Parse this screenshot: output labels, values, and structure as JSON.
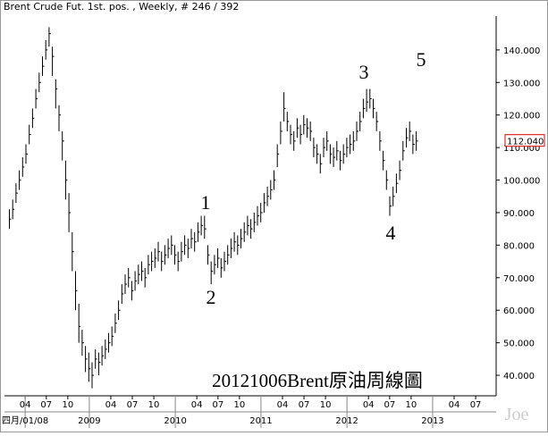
{
  "chart_data": {
    "type": "ohlc",
    "title": "Brent Crude Fut. 1st. pos. , Weekly, # 246 / 392",
    "caption": "20121006Brent原油周線圖",
    "watermark": "Joe",
    "color": "#000000",
    "ylim": [
      33.7,
      150.4
    ],
    "yticks": [
      {
        "value": 40,
        "label": "40.000"
      },
      {
        "value": 50,
        "label": "50.000"
      },
      {
        "value": 60,
        "label": "60.000"
      },
      {
        "value": 70,
        "label": "70.000"
      },
      {
        "value": 80,
        "label": "80.000"
      },
      {
        "value": 90,
        "label": "90.000"
      },
      {
        "value": 100,
        "label": "100.000"
      },
      {
        "value": 110,
        "label": "110.000"
      },
      {
        "value": 120,
        "label": "120.000"
      },
      {
        "value": 130,
        "label": "130.000"
      },
      {
        "value": 140,
        "label": "140.000"
      }
    ],
    "xlim": [
      -1.35,
      147.3
    ],
    "xticks": [
      {
        "value": 4.9,
        "label": "04"
      },
      {
        "value": 11.3,
        "label": "07"
      },
      {
        "value": 17.8,
        "label": "10"
      },
      {
        "value": 30.8,
        "label": "04"
      },
      {
        "value": 37.3,
        "label": "07"
      },
      {
        "value": 43.8,
        "label": "10"
      },
      {
        "value": 56.8,
        "label": "04"
      },
      {
        "value": 63.2,
        "label": "07"
      },
      {
        "value": 69.7,
        "label": "10"
      },
      {
        "value": 82.7,
        "label": "04"
      },
      {
        "value": 89.2,
        "label": "07"
      },
      {
        "value": 95.7,
        "label": "10"
      },
      {
        "value": 108.7,
        "label": "04"
      },
      {
        "value": 115.1,
        "label": "07"
      },
      {
        "value": 121.6,
        "label": "10"
      },
      {
        "value": 134.6,
        "label": "04"
      },
      {
        "value": 141.1,
        "label": "07"
      }
    ],
    "year_ticks": [
      {
        "value": 4.9,
        "label": "四月/01/08"
      },
      {
        "value": 24.3,
        "label": "2009"
      },
      {
        "value": 50.3,
        "label": "2010"
      },
      {
        "value": 76.2,
        "label": "2011"
      },
      {
        "value": 102.2,
        "label": "2012"
      },
      {
        "value": 128.1,
        "label": "2013"
      }
    ],
    "last_price": {
      "value": 112.04,
      "label": "112.040",
      "color": "#e00000"
    },
    "wave_labels": [
      "1",
      "2",
      "3",
      "4",
      "5"
    ],
    "wave_color": "#3a4fc0",
    "high": [
      91,
      94,
      99,
      103,
      107,
      111,
      117,
      122,
      128,
      133,
      138,
      143,
      147,
      141,
      131,
      123,
      115,
      106,
      96,
      84,
      72,
      62,
      54,
      49,
      47,
      44,
      48,
      47,
      49,
      51,
      53,
      55,
      59,
      63,
      68,
      71,
      73,
      69,
      72,
      74,
      75,
      73,
      77,
      78,
      79,
      81,
      78,
      80,
      82,
      83,
      80,
      78,
      81,
      83,
      82,
      85,
      84,
      87,
      89,
      89,
      80,
      75,
      77,
      79,
      76,
      78,
      80,
      82,
      84,
      83,
      85,
      87,
      89,
      88,
      90,
      92,
      93,
      96,
      98,
      100,
      103,
      111,
      118,
      127,
      121,
      117,
      115,
      119,
      117,
      120,
      119,
      118,
      113,
      111,
      108,
      113,
      115,
      111,
      110,
      112,
      109,
      111,
      113,
      114,
      115,
      118,
      121,
      125,
      128,
      128,
      125,
      121,
      115,
      109,
      103,
      95,
      98,
      102,
      106,
      112,
      116,
      118,
      114,
      115
    ],
    "low": [
      85,
      88,
      93,
      97,
      101,
      105,
      111,
      116,
      122,
      127,
      132,
      137,
      141,
      132,
      122,
      115,
      106,
      94,
      84,
      72,
      60,
      50,
      46,
      41,
      38,
      36,
      42,
      40,
      43,
      45,
      47,
      49,
      53,
      57,
      62,
      65,
      67,
      63,
      66,
      68,
      69,
      67,
      71,
      72,
      73,
      75,
      72,
      74,
      76,
      77,
      74,
      72,
      75,
      77,
      76,
      79,
      78,
      81,
      83,
      82,
      74,
      68,
      71,
      73,
      70,
      72,
      74,
      76,
      78,
      77,
      79,
      81,
      83,
      82,
      84,
      86,
      87,
      90,
      92,
      94,
      97,
      104,
      111,
      118,
      115,
      111,
      109,
      113,
      111,
      114,
      113,
      112,
      107,
      105,
      102,
      107,
      109,
      105,
      104,
      106,
      103,
      105,
      107,
      108,
      109,
      112,
      115,
      119,
      121,
      122,
      119,
      115,
      109,
      103,
      97,
      89,
      92,
      96,
      100,
      106,
      110,
      112,
      108,
      109
    ],
    "close": [
      88,
      91,
      96,
      100,
      104,
      108,
      114,
      119,
      125,
      130,
      135,
      140,
      145,
      138,
      128,
      120,
      112,
      100,
      90,
      78,
      66,
      55,
      50,
      45,
      42,
      40,
      45,
      44,
      46,
      48,
      50,
      52,
      56,
      60,
      65,
      68,
      70,
      66,
      69,
      71,
      72,
      70,
      74,
      75,
      76,
      78,
      75,
      77,
      79,
      80,
      77,
      75,
      78,
      80,
      79,
      82,
      81,
      84,
      86,
      85,
      77,
      72,
      74,
      76,
      73,
      75,
      77,
      79,
      81,
      80,
      82,
      84,
      86,
      85,
      87,
      89,
      90,
      93,
      95,
      97,
      100,
      108,
      115,
      122,
      118,
      114,
      112,
      116,
      114,
      117,
      116,
      115,
      110,
      108,
      105,
      110,
      112,
      108,
      107,
      109,
      106,
      108,
      110,
      111,
      112,
      115,
      118,
      122,
      124,
      125,
      122,
      118,
      112,
      106,
      100,
      92,
      95,
      99,
      103,
      109,
      113,
      115,
      111,
      112
    ]
  }
}
